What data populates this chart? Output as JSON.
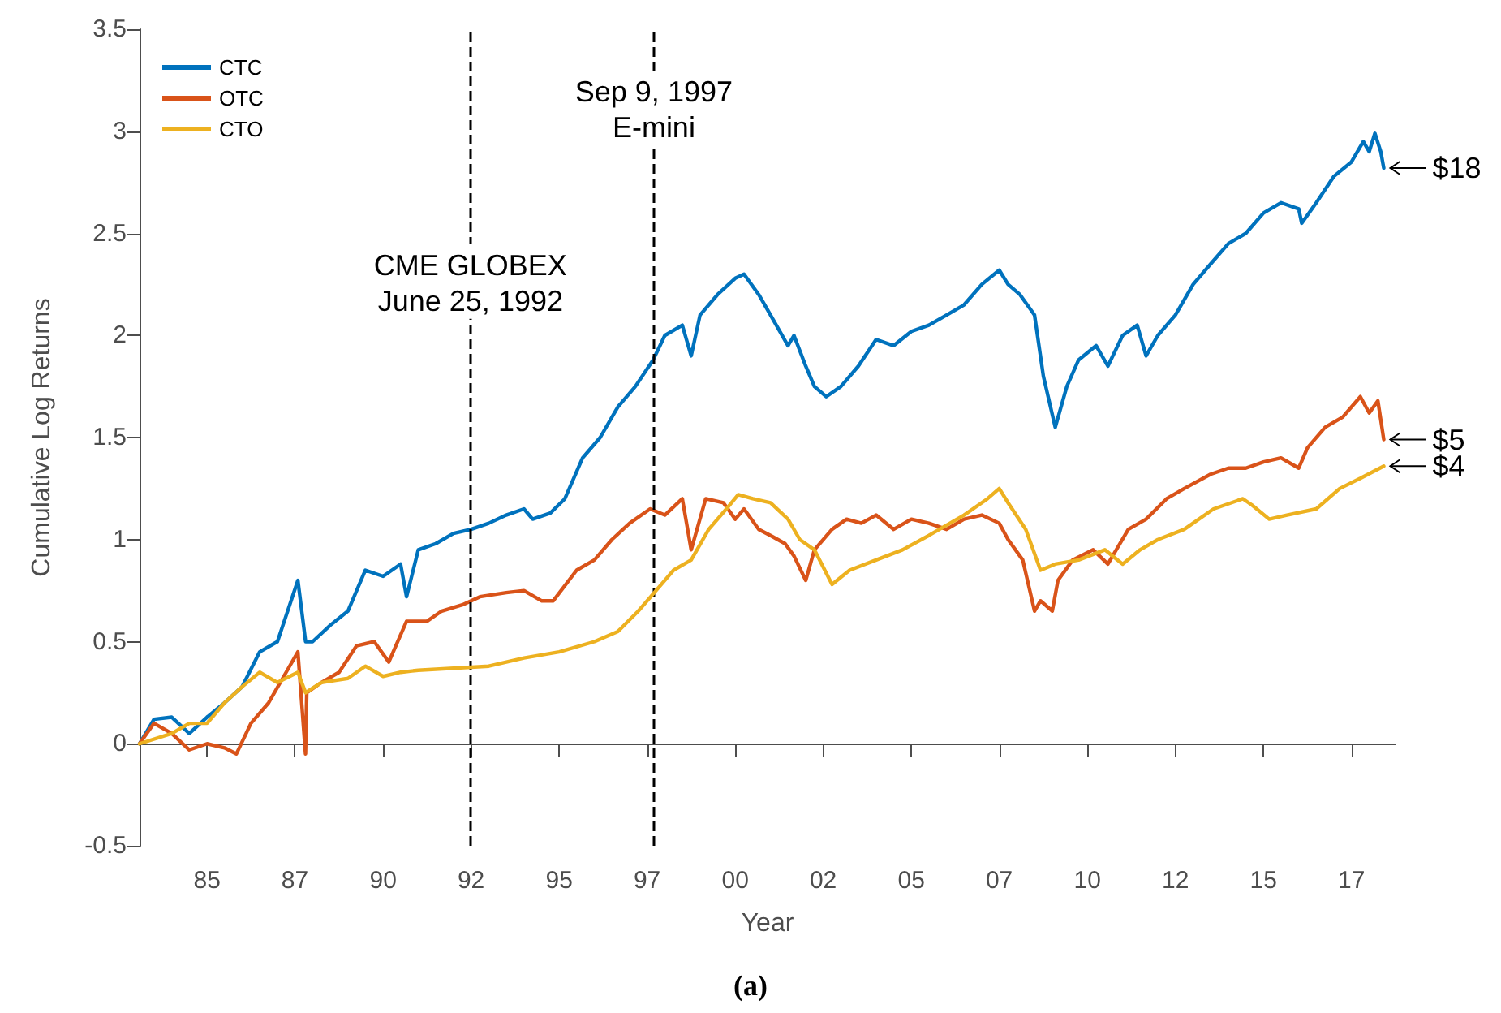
{
  "chart_data": {
    "type": "line",
    "xlabel": "Year",
    "ylabel": "Cumulative Log Returns",
    "legend": "top left",
    "grid": false,
    "marker": "none",
    "line_style": "solid",
    "xlim": [
      "1983-02",
      "2018-10"
    ],
    "ylim": [
      -0.5,
      3.5
    ],
    "yticks": [
      -0.5,
      0,
      0.5,
      1,
      1.5,
      2,
      2.5,
      3,
      3.5
    ],
    "xticks": [
      {
        "value": "1985-01",
        "label": "85"
      },
      {
        "value": "1987-07",
        "label": "87"
      },
      {
        "value": "1990-01",
        "label": "90"
      },
      {
        "value": "1992-07",
        "label": "92"
      },
      {
        "value": "1995-01",
        "label": "95"
      },
      {
        "value": "1997-07",
        "label": "97"
      },
      {
        "value": "2000-01",
        "label": "00"
      },
      {
        "value": "2002-07",
        "label": "02"
      },
      {
        "value": "2005-01",
        "label": "05"
      },
      {
        "value": "2007-07",
        "label": "07"
      },
      {
        "value": "2010-01",
        "label": "10"
      },
      {
        "value": "2012-07",
        "label": "12"
      },
      {
        "value": "2015-01",
        "label": "15"
      },
      {
        "value": "2017-07",
        "label": "17"
      }
    ],
    "series": [
      {
        "name": "CTC",
        "color": "#0072bd",
        "x": [
          "1983-02",
          "1983-07",
          "1984-01",
          "1984-07",
          "1985-01",
          "1985-07",
          "1986-01",
          "1986-07",
          "1987-01",
          "1987-08",
          "1987-10-20",
          "1988-01",
          "1988-07",
          "1989-01",
          "1989-07",
          "1990-01",
          "1990-07",
          "1990-09",
          "1991-01",
          "1991-07",
          "1992-01",
          "1992-07",
          "1993-01",
          "1993-07",
          "1994-01",
          "1994-04",
          "1994-10",
          "1995-03",
          "1995-09",
          "1996-03",
          "1996-09",
          "1997-03",
          "1997-09",
          "1998-01",
          "1998-07",
          "1998-10",
          "1999-01",
          "1999-07",
          "2000-01",
          "2000-04",
          "2000-09",
          "2001-01",
          "2001-07",
          "2001-09",
          "2002-01",
          "2002-04",
          "2002-08",
          "2003-01",
          "2003-07",
          "2004-01",
          "2004-07",
          "2005-01",
          "2005-07",
          "2006-01",
          "2006-07",
          "2007-01",
          "2007-07",
          "2007-10",
          "2008-02",
          "2008-07",
          "2008-10",
          "2009-02",
          "2009-06",
          "2009-10",
          "2010-04",
          "2010-08",
          "2011-01",
          "2011-06",
          "2011-09",
          "2012-01",
          "2012-07",
          "2013-01",
          "2013-07",
          "2014-01",
          "2014-07",
          "2015-01",
          "2015-07",
          "2016-01",
          "2016-02",
          "2016-07",
          "2017-01",
          "2017-07",
          "2017-11",
          "2018-01",
          "2018-03",
          "2018-05",
          "2018-06"
        ],
        "values": [
          0,
          0.12,
          0.13,
          0.05,
          0.13,
          0.2,
          0.28,
          0.45,
          0.5,
          0.8,
          0.5,
          0.5,
          0.58,
          0.65,
          0.85,
          0.82,
          0.88,
          0.72,
          0.95,
          0.98,
          1.03,
          1.05,
          1.08,
          1.12,
          1.15,
          1.1,
          1.13,
          1.2,
          1.4,
          1.5,
          1.65,
          1.75,
          1.88,
          2,
          2.05,
          1.9,
          2.1,
          2.2,
          2.28,
          2.3,
          2.2,
          2.1,
          1.95,
          2,
          1.85,
          1.75,
          1.7,
          1.75,
          1.85,
          1.98,
          1.95,
          2.02,
          2.05,
          2.1,
          2.15,
          2.25,
          2.32,
          2.25,
          2.2,
          2.1,
          1.8,
          1.55,
          1.75,
          1.88,
          1.95,
          1.85,
          2,
          2.05,
          1.9,
          2,
          2.1,
          2.25,
          2.35,
          2.45,
          2.5,
          2.6,
          2.65,
          2.62,
          2.55,
          2.65,
          2.78,
          2.85,
          2.95,
          2.9,
          2.99,
          2.9,
          2.82
        ]
      },
      {
        "name": "OTC",
        "color": "#d95319",
        "x": [
          "1983-02",
          "1983-07",
          "1984-01",
          "1984-07",
          "1985-01",
          "1985-07",
          "1985-11",
          "1986-04",
          "1986-10",
          "1987-04",
          "1987-08",
          "1987-10-19",
          "1987-11",
          "1988-04",
          "1988-10",
          "1989-04",
          "1989-10",
          "1990-03",
          "1990-09",
          "1991-04",
          "1991-09",
          "1992-04",
          "1992-10",
          "1993-07",
          "1994-01",
          "1994-07",
          "1994-11",
          "1995-07",
          "1996-01",
          "1996-07",
          "1997-01",
          "1997-08",
          "1998-01",
          "1998-07",
          "1998-10",
          "1999-03",
          "1999-09",
          "2000-01",
          "2000-04",
          "2000-09",
          "2001-01",
          "2001-06",
          "2001-09",
          "2002-01",
          "2002-04",
          "2002-10",
          "2003-03",
          "2003-08",
          "2004-01",
          "2004-07",
          "2005-01",
          "2005-07",
          "2006-01",
          "2006-07",
          "2007-01",
          "2007-07",
          "2007-10",
          "2008-03",
          "2008-07",
          "2008-09",
          "2009-01",
          "2009-03",
          "2009-08",
          "2010-03",
          "2010-08",
          "2011-03",
          "2011-09",
          "2012-04",
          "2012-10",
          "2013-07",
          "2014-01",
          "2014-07",
          "2015-01",
          "2015-07",
          "2016-01",
          "2016-04",
          "2016-10",
          "2017-04",
          "2017-10",
          "2018-01",
          "2018-04",
          "2018-06"
        ],
        "values": [
          0,
          0.1,
          0.05,
          -0.03,
          0,
          -0.02,
          -0.05,
          0.1,
          0.2,
          0.35,
          0.45,
          -0.05,
          0.25,
          0.3,
          0.35,
          0.48,
          0.5,
          0.4,
          0.6,
          0.6,
          0.65,
          0.68,
          0.72,
          0.74,
          0.75,
          0.7,
          0.7,
          0.85,
          0.9,
          1,
          1.08,
          1.15,
          1.12,
          1.2,
          0.95,
          1.2,
          1.18,
          1.1,
          1.15,
          1.05,
          1.02,
          0.98,
          0.92,
          0.8,
          0.95,
          1.05,
          1.1,
          1.08,
          1.12,
          1.05,
          1.1,
          1.08,
          1.05,
          1.1,
          1.12,
          1.08,
          1,
          0.9,
          0.65,
          0.7,
          0.65,
          0.8,
          0.9,
          0.95,
          0.88,
          1.05,
          1.1,
          1.2,
          1.25,
          1.32,
          1.35,
          1.35,
          1.38,
          1.4,
          1.35,
          1.45,
          1.55,
          1.6,
          1.7,
          1.62,
          1.68,
          1.49
        ]
      },
      {
        "name": "CTO",
        "color": "#edb120",
        "x": [
          "1983-02",
          "1984-01",
          "1984-07",
          "1985-01",
          "1985-07",
          "1986-01",
          "1986-07",
          "1987-01",
          "1987-08",
          "1987-10-20",
          "1988-04",
          "1989-01",
          "1989-07",
          "1990-01",
          "1990-07",
          "1991-01",
          "1992-01",
          "1993-01",
          "1994-01",
          "1995-01",
          "1996-01",
          "1996-09",
          "1997-04",
          "1997-10",
          "1998-04",
          "1998-10",
          "1999-04",
          "1999-10",
          "2000-02",
          "2000-07",
          "2001-01",
          "2001-07",
          "2001-11",
          "2002-04",
          "2002-10",
          "2003-04",
          "2004-01",
          "2004-10",
          "2005-07",
          "2006-07",
          "2007-03",
          "2007-07",
          "2007-10",
          "2008-04",
          "2008-09",
          "2009-02",
          "2009-10",
          "2010-07",
          "2011-01",
          "2011-07",
          "2012-01",
          "2012-10",
          "2013-08",
          "2014-06",
          "2014-09",
          "2015-03",
          "2015-09",
          "2016-07",
          "2017-03",
          "2017-10",
          "2018-06"
        ],
        "values": [
          0,
          0.05,
          0.1,
          0.1,
          0.2,
          0.28,
          0.35,
          0.3,
          0.35,
          0.25,
          0.3,
          0.32,
          0.38,
          0.33,
          0.35,
          0.36,
          0.37,
          0.38,
          0.42,
          0.45,
          0.5,
          0.55,
          0.65,
          0.75,
          0.85,
          0.9,
          1.05,
          1.15,
          1.22,
          1.2,
          1.18,
          1.1,
          1,
          0.95,
          0.78,
          0.85,
          0.9,
          0.95,
          1.02,
          1.12,
          1.2,
          1.25,
          1.18,
          1.05,
          0.85,
          0.88,
          0.9,
          0.95,
          0.88,
          0.95,
          1,
          1.05,
          1.15,
          1.2,
          1.17,
          1.1,
          1.12,
          1.15,
          1.25,
          1.3,
          1.36
        ]
      }
    ],
    "ref_lines": [
      {
        "axis": "x",
        "value": "1992-06-25",
        "color": "#000000",
        "line_style": "dashed"
      },
      {
        "axis": "x",
        "value": "1997-09-09",
        "color": "#000000",
        "line_style": "dashed"
      }
    ],
    "annotations": [
      {
        "text": "CME GLOBEX\nJune 25, 1992",
        "x": "1992-06-25",
        "y": 2.05
      },
      {
        "text": "Sep 9, 1997\nE-mini",
        "x": "1997-09-09",
        "y": 2.9
      },
      {
        "text": "$18",
        "x": "2018-06",
        "y": 2.82
      },
      {
        "text": "$5",
        "x": "2018-06",
        "y": 1.49
      },
      {
        "text": "$4",
        "x": "2018-06",
        "y": 1.36
      },
      "(a)"
    ]
  }
}
